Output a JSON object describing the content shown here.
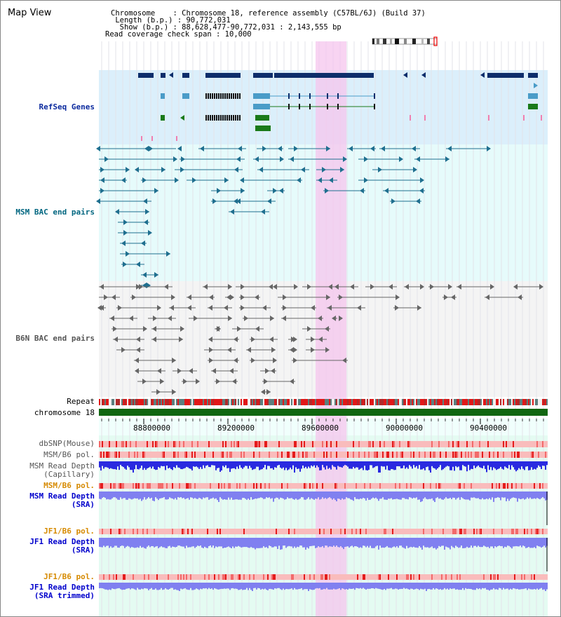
{
  "page": {
    "title": "Map View"
  },
  "header": {
    "chromosome": "Chromosome    : Chromosome 18, reference assembly (C57BL/6J) (Build 37)",
    "length": " Length (b.p.) : 90,772,031",
    "show": "  Show (b.p.) : 88,628,477-90,772,031 : 2,143,555 bp",
    "coverage": "Read coverage check span : 10,000"
  },
  "tracks": {
    "refseq": "RefSeq Genes",
    "msm_bac": "MSM BAC end pairs",
    "b6n_bac": "B6N BAC end pairs",
    "repeat": "Repeat",
    "chromosome": "chromosome 18",
    "dbsnp": "dbSNP(Mouse)",
    "msm_b6_pol": "MSM/B6 pol.",
    "msm_depth_cap": "MSM Read Depth\n(Capillary)",
    "msm_b6_pol2": "MSM/B6 pol.",
    "msm_depth_sra": "MSM Read Depth\n(SRA)",
    "jf1_b6_pol": "JF1/B6 pol.",
    "jf1_depth_sra": "JF1 Read Depth\n(SRA)",
    "jf1_b6_pol2": "JF1/B6 pol.",
    "jf1_depth_trim": "JF1 Read Depth\n(SRA trimmed)"
  },
  "axis": {
    "ticks": [
      "88800000",
      "89200000",
      "89600000",
      "90000000",
      "90400000"
    ]
  },
  "colors": {
    "refseq_bg": "#dbeffb",
    "bac_bg": "#e6fbfb",
    "b6n_bg": "#f4f4f4",
    "highlight": "#f5c6ee",
    "gene_dark": "#0d2d6b",
    "gene_light": "#4a9cc8",
    "gene_green": "#1a7a1a",
    "bac_teal": "#1f6f8f",
    "bac_gray": "#666666",
    "chrom_green": "#116611",
    "depth_blue": "#2a2ae0",
    "depth_light": "#8080f0"
  },
  "cytoband": {
    "icon": "chromosome-ideogram-icon"
  }
}
